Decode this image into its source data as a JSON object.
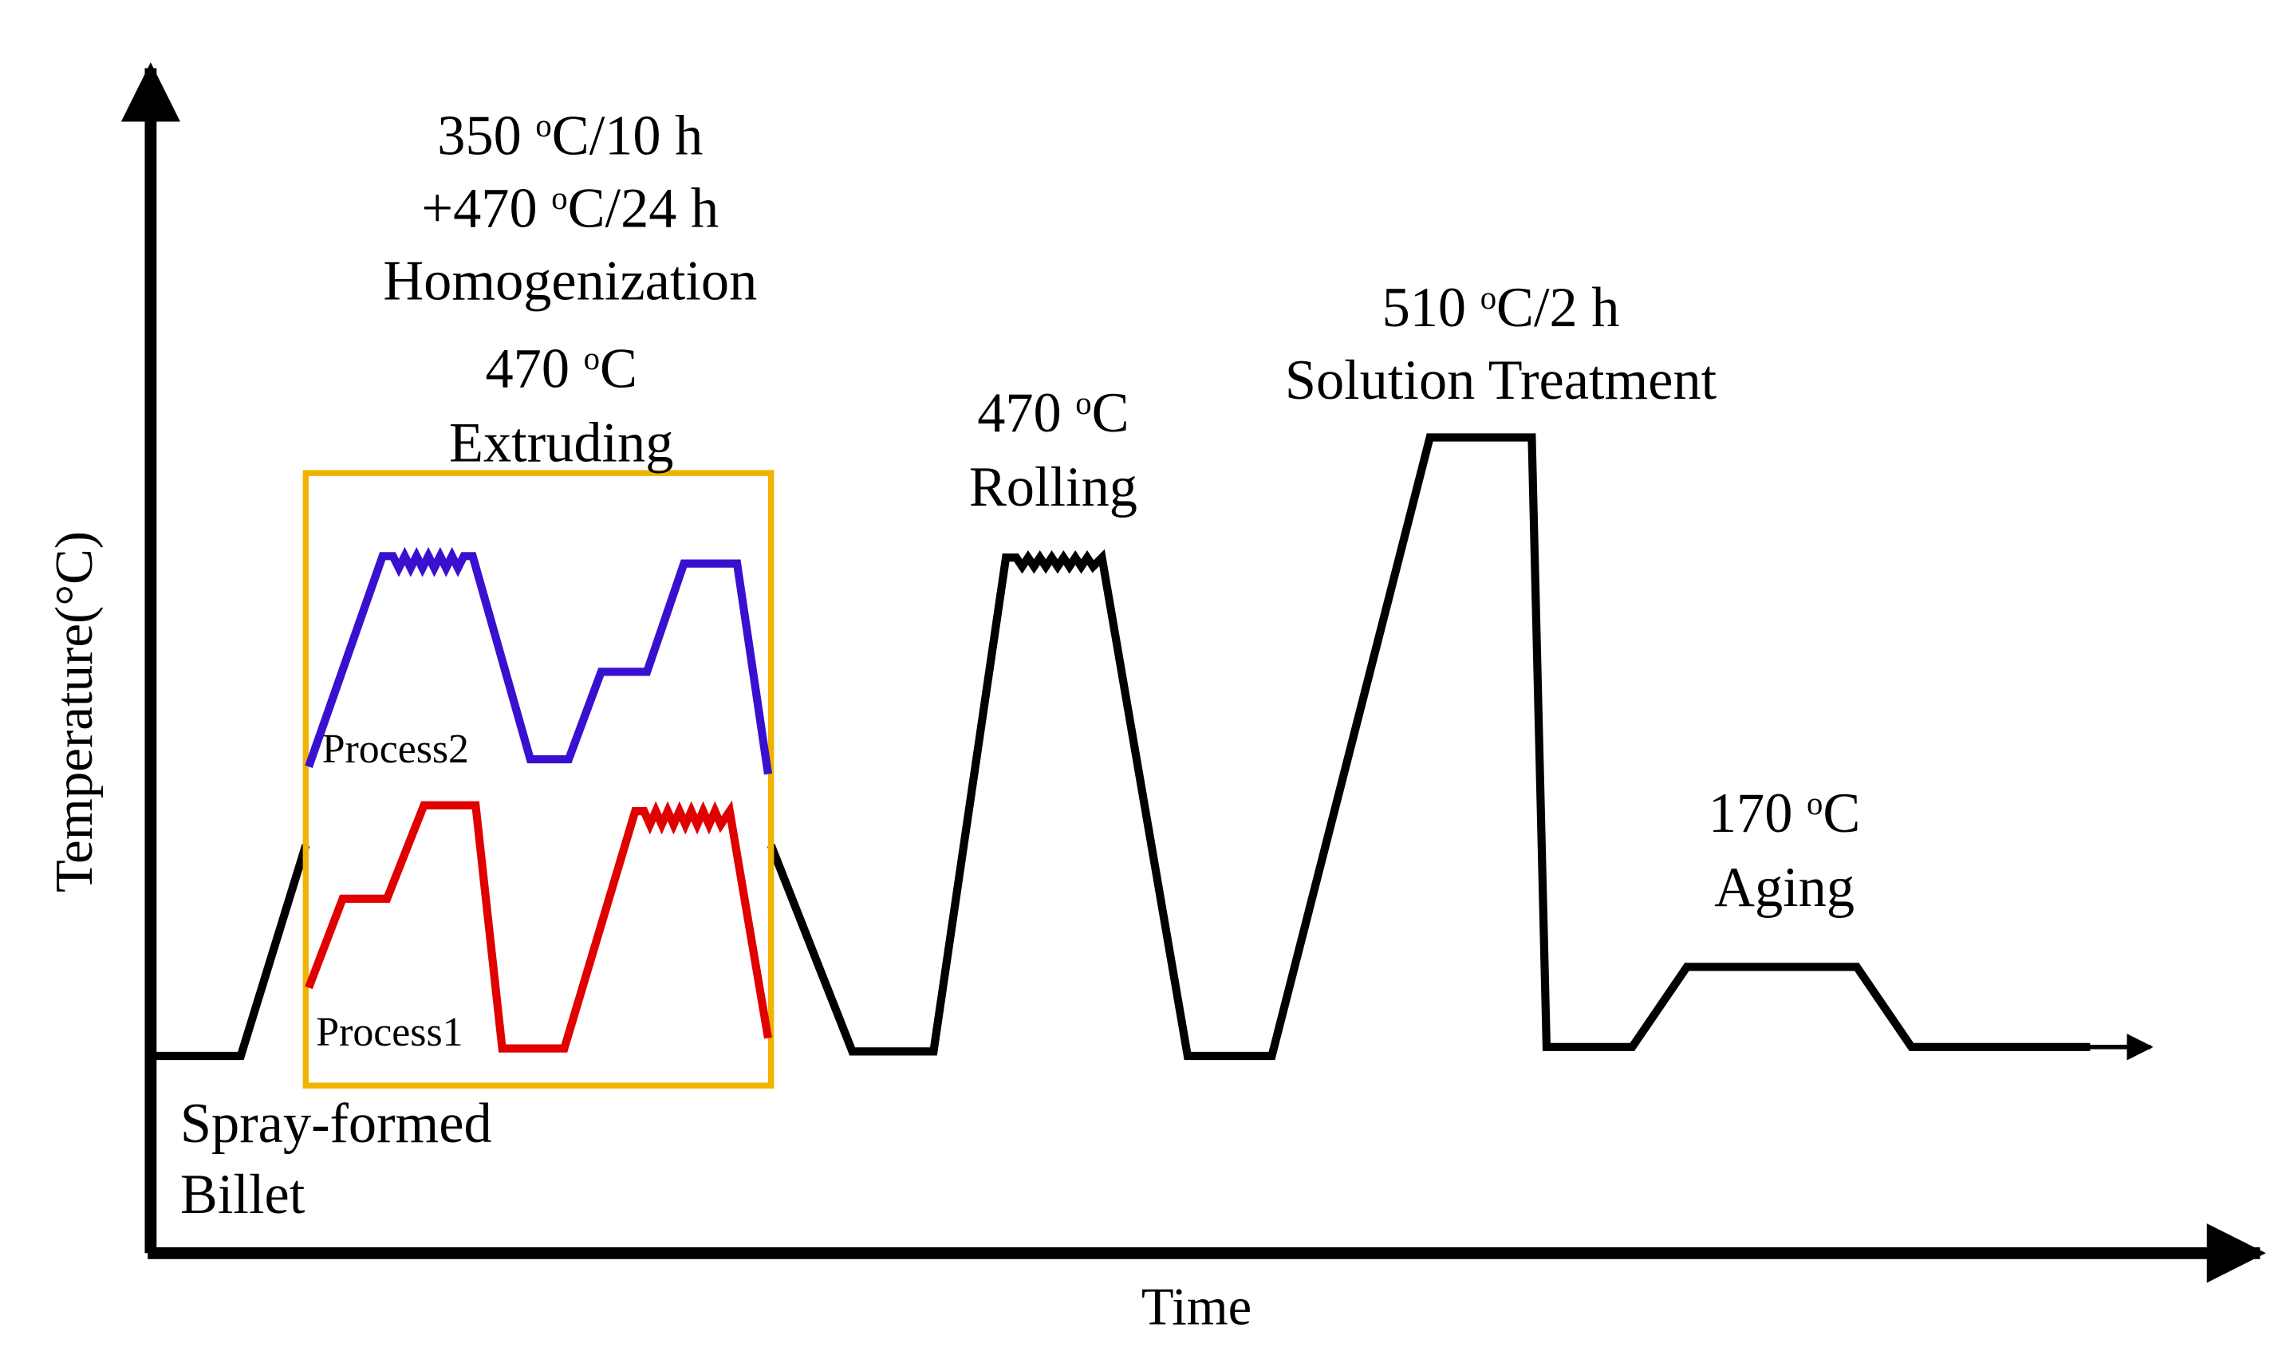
{
  "axes": {
    "x_label": "Time",
    "y_label": "Temperature(°C)"
  },
  "colors": {
    "main": "#000000",
    "process1": "#e00000",
    "process2": "#3a10d0",
    "box": "#f0b400"
  },
  "stages": {
    "billet": {
      "line1": "Spray-formed",
      "line2": "Billet"
    },
    "homogenization": {
      "line1": {
        "value": "350 ",
        "sup": "o",
        "unit": "C/10 h"
      },
      "line2": {
        "value": "+470 ",
        "sup": "o",
        "unit": "C/24 h"
      },
      "name": "Homogenization"
    },
    "extruding": {
      "temp": {
        "value": "470 ",
        "sup": "o",
        "unit": "C"
      },
      "name": "Extruding"
    },
    "rolling": {
      "temp": {
        "value": "470 ",
        "sup": "o",
        "unit": "C"
      },
      "name": "Rolling"
    },
    "solution": {
      "temp": {
        "value": "510 ",
        "sup": "o",
        "unit": "C/2 h"
      },
      "name": "Solution Treatment"
    },
    "aging": {
      "temp": {
        "value": "170 ",
        "sup": "o",
        "unit": "C"
      },
      "name": "Aging"
    }
  },
  "processes": {
    "process1": "Process1",
    "process2": "Process2"
  }
}
